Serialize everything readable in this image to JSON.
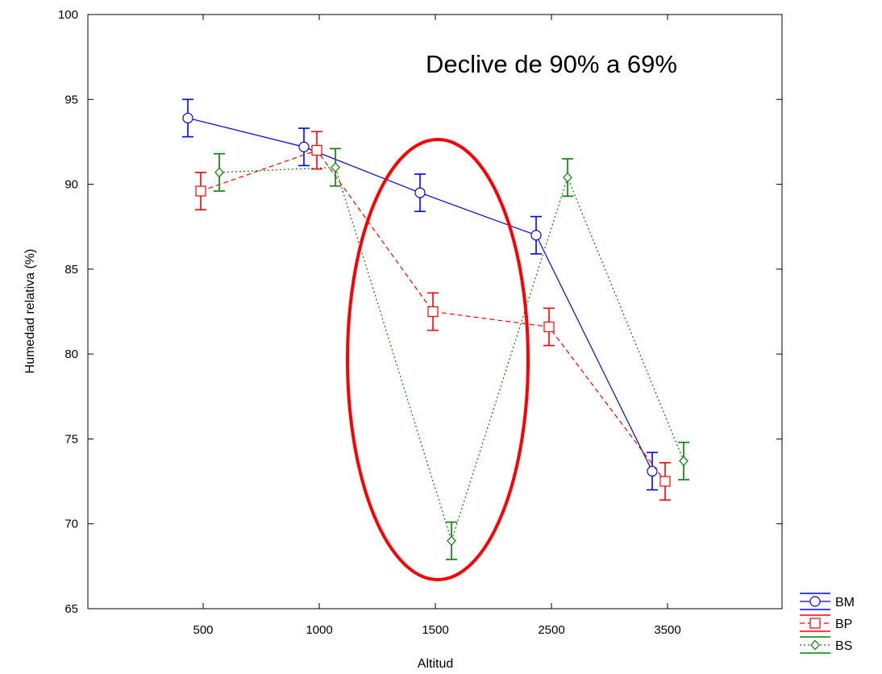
{
  "chart_data": {
    "type": "line",
    "title": "",
    "xlabel": "Altitud",
    "ylabel": "Humedad relativa (%)",
    "ylim": [
      65,
      100
    ],
    "yticks": [
      65,
      70,
      75,
      80,
      85,
      90,
      95,
      100
    ],
    "categories": [
      "500",
      "1000",
      "1500",
      "2500",
      "3500"
    ],
    "grid": false,
    "legend_position": "bottom-right, outside plot",
    "annotation": "Declive de 90% a 69%",
    "highlight": {
      "shape": "ellipse",
      "color": "#ff0000",
      "around_category": "1500"
    },
    "series": [
      {
        "name": "BM",
        "color": "#0000ff",
        "marker": "circle",
        "line": "solid",
        "values": [
          93.9,
          92.2,
          89.5,
          87.0,
          73.1
        ],
        "error": [
          1.1,
          1.1,
          1.1,
          1.1,
          1.1
        ]
      },
      {
        "name": "BP",
        "color": "#ff0000",
        "marker": "square",
        "line": "dashed",
        "values": [
          89.6,
          92.0,
          82.5,
          81.6,
          72.5
        ],
        "error": [
          1.1,
          1.1,
          1.1,
          1.1,
          1.1
        ]
      },
      {
        "name": "BS",
        "color": "#008000",
        "marker": "diamond",
        "line": "dotted",
        "values": [
          90.7,
          91.0,
          69.0,
          90.4,
          73.7
        ],
        "error": [
          1.1,
          1.1,
          1.1,
          1.1,
          1.1
        ]
      }
    ]
  }
}
